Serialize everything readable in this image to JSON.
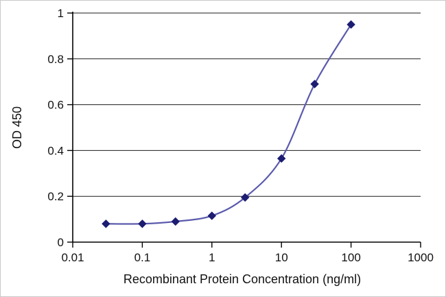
{
  "chart_data": {
    "type": "line",
    "title": "",
    "xlabel": "Recombinant Protein Concentration (ng/ml)",
    "ylabel": "OD 450",
    "xscale": "log",
    "xlim": [
      0.01,
      1000
    ],
    "ylim": [
      0,
      1
    ],
    "x": [
      0.03,
      0.1,
      0.3,
      1,
      3,
      10,
      30,
      100
    ],
    "series": [
      {
        "name": "OD 450",
        "values": [
          0.08,
          0.08,
          0.09,
          0.115,
          0.195,
          0.365,
          0.69,
          0.95
        ]
      }
    ],
    "xticks": [
      "0.01",
      "0.1",
      "1",
      "10",
      "100",
      "1000"
    ],
    "yticks": [
      "0",
      "0.2",
      "0.4",
      "0.6",
      "0.8",
      "1"
    ],
    "grid": "horizontal",
    "legend": "none",
    "marker": "diamond",
    "colors": {
      "line": "#5a5aad",
      "marker": "#1c1c72",
      "axis": "#000000",
      "gridline": "#1a1a1a",
      "text": "#111111"
    }
  }
}
